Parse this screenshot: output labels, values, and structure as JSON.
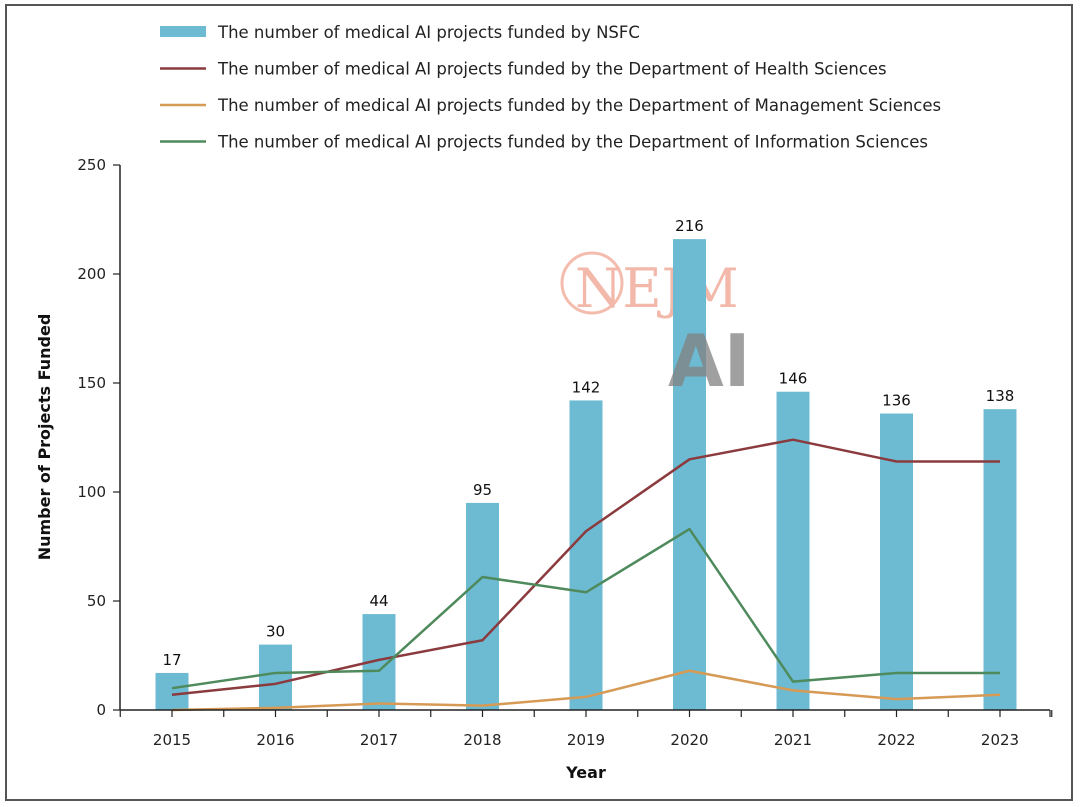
{
  "chart_data": {
    "type": "bar",
    "title": "",
    "xlabel": "Year",
    "ylabel": "Number of Projects Funded",
    "ylim": [
      0,
      250
    ],
    "yticks": [
      0,
      50,
      100,
      150,
      200,
      250
    ],
    "categories": [
      "2015",
      "2016",
      "2017",
      "2018",
      "2019",
      "2020",
      "2021",
      "2022",
      "2023"
    ],
    "grid": false,
    "legend_position": "top",
    "series": [
      {
        "name": "The number of medical AI projects funded by NSFC",
        "kind": "bar",
        "color": "#6cbbd3",
        "values": [
          17,
          30,
          44,
          95,
          142,
          216,
          146,
          136,
          138
        ],
        "data_labels": [
          "17",
          "30",
          "44",
          "95",
          "142",
          "216",
          "146",
          "136",
          "138"
        ]
      },
      {
        "name": "The number of medical AI projects funded by the Department of Health Sciences",
        "kind": "line",
        "color": "#8b3a3e",
        "values": [
          7,
          12,
          23,
          32,
          82,
          115,
          124,
          114,
          114
        ]
      },
      {
        "name": "The number of medical AI projects funded by the Department of Management Sciences",
        "kind": "line",
        "color": "#d69a55",
        "values": [
          0,
          1,
          3,
          2,
          6,
          18,
          9,
          5,
          7
        ]
      },
      {
        "name": "The number of medical AI projects funded by the Department of Information Sciences",
        "kind": "line",
        "color": "#4e8a5c",
        "values": [
          10,
          17,
          18,
          61,
          54,
          83,
          13,
          17,
          17
        ]
      }
    ],
    "watermark": {
      "line1": "NEJM",
      "line2": "AI"
    }
  }
}
